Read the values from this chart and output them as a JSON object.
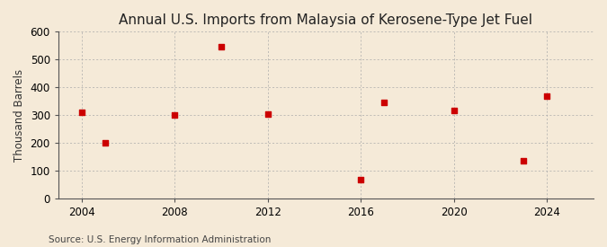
{
  "title": "Annual U.S. Imports from Malaysia of Kerosene-Type Jet Fuel",
  "ylabel": "Thousand Barrels",
  "source": "Source: U.S. Energy Information Administration",
  "background_color": "#f5ead8",
  "plot_background_color": "#f5ead8",
  "marker_color": "#cc0000",
  "years": [
    2004,
    2005,
    2008,
    2010,
    2012,
    2016,
    2017,
    2020,
    2023,
    2024
  ],
  "values": [
    310,
    200,
    300,
    545,
    305,
    70,
    348,
    318,
    138,
    368
  ],
  "xlim": [
    2003,
    2026
  ],
  "ylim": [
    0,
    600
  ],
  "yticks": [
    0,
    100,
    200,
    300,
    400,
    500,
    600
  ],
  "xticks": [
    2004,
    2008,
    2012,
    2016,
    2020,
    2024
  ],
  "grid_color": "#aaaaaa",
  "title_fontsize": 11,
  "label_fontsize": 8.5,
  "tick_fontsize": 8.5,
  "source_fontsize": 7.5
}
